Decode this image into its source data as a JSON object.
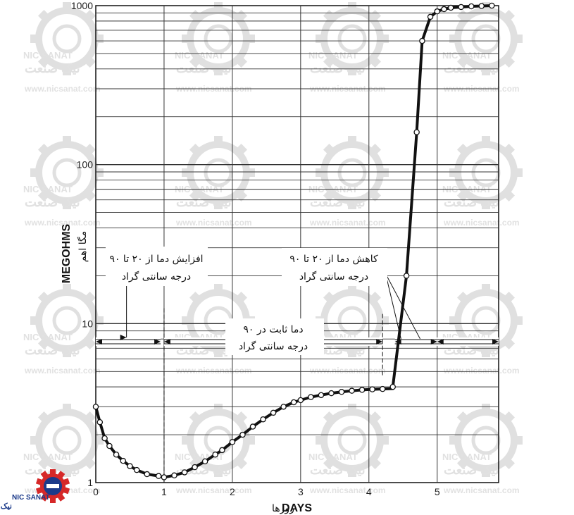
{
  "chart_data": {
    "type": "line",
    "xlabel_en": "DAYS",
    "xlabel_fa": "روزها",
    "ylabel_en": "MEGOHMS",
    "ylabel_fa": "مگا اهم",
    "x_scale": "linear",
    "y_scale": "log",
    "xlim": [
      0,
      5.9
    ],
    "ylim": [
      1,
      1000
    ],
    "x_ticks": [
      "0",
      "1",
      "2",
      "3",
      "4",
      "5"
    ],
    "y_ticks": [
      "1",
      "10",
      "100",
      "1000"
    ],
    "grid": true,
    "series": [
      {
        "x": [
          0.0,
          0.06,
          0.13,
          0.2,
          0.3,
          0.4,
          0.5,
          0.6,
          0.75,
          0.92,
          1.0,
          1.15,
          1.3,
          1.45,
          1.6,
          1.75,
          1.85,
          2.0,
          2.15,
          2.3,
          2.45,
          2.6,
          2.75,
          2.9,
          3.0,
          3.15,
          3.3,
          3.45,
          3.6,
          3.75,
          3.9,
          4.05,
          4.2,
          4.35,
          4.35,
          4.55,
          4.7,
          4.78,
          4.9,
          5.0,
          5.1,
          5.2,
          5.35,
          5.5,
          5.65,
          5.8
        ],
        "y": [
          3.0,
          2.4,
          1.9,
          1.7,
          1.5,
          1.37,
          1.27,
          1.2,
          1.13,
          1.1,
          1.08,
          1.11,
          1.16,
          1.25,
          1.36,
          1.5,
          1.6,
          1.8,
          2.0,
          2.25,
          2.5,
          2.75,
          3.0,
          3.2,
          3.3,
          3.45,
          3.55,
          3.65,
          3.72,
          3.78,
          3.83,
          3.86,
          3.88,
          3.9,
          4.0,
          20,
          160,
          600,
          850,
          920,
          950,
          970,
          980,
          990,
          995,
          1000
        ]
      }
    ],
    "annotations": {
      "heating": [
        "افزایش دما از ۲۰ تا ۹۰",
        "درجه سانتی گراد"
      ],
      "constant": [
        "دما ثابت در ۹۰",
        "درجه سانتی گراد"
      ],
      "cooling": [
        "کاهش دما از ۲۰ تا ۹۰",
        "درجه سانتی گراد"
      ]
    }
  },
  "watermark": {
    "brand_en": "NIC SANAT",
    "brand_fa": "نیک صنعت",
    "url": "www.nicsanat.com"
  },
  "colors": {
    "curve": "#111111",
    "grid": "#333333",
    "watermark": "#c8c8c8",
    "logo_red": "#d62828",
    "logo_blue": "#1b3a8a"
  }
}
